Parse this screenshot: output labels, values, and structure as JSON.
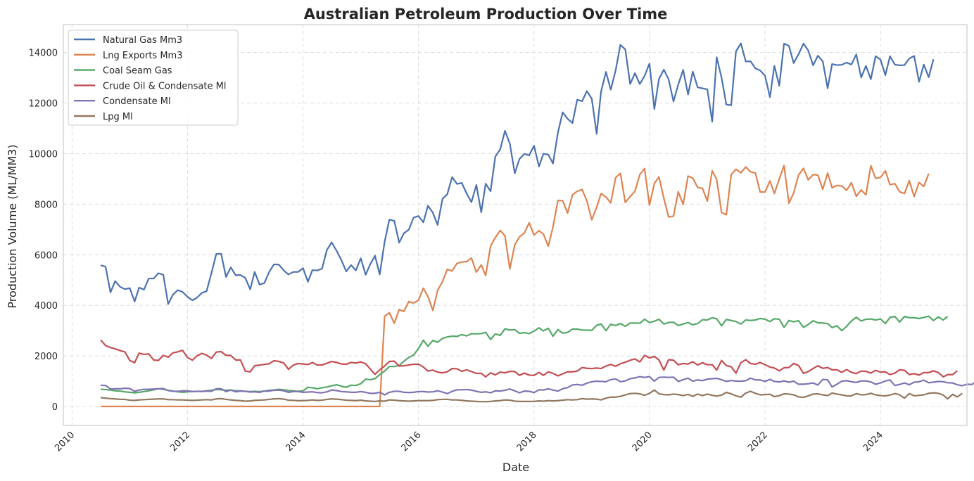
{
  "chart_data": {
    "type": "line",
    "title": "Australian Petroleum Production Over Time",
    "xlabel": "Date",
    "ylabel": "Production Volume (ML/MM3)",
    "xlim": [
      "2009-11-07",
      "2025-07-01"
    ],
    "ylim": [
      -750,
      15100
    ],
    "x_ticks": [
      "2010",
      "2012",
      "2014",
      "2016",
      "2018",
      "2020",
      "2022",
      "2024"
    ],
    "y_ticks": [
      0,
      2000,
      4000,
      6000,
      8000,
      10000,
      12000,
      14000
    ],
    "grid": true,
    "legend_position": "top-left",
    "x_start": "2010-07",
    "x_end": "2024-12",
    "x_frequency": "monthly",
    "series": [
      {
        "name": "Natural Gas Mm3",
        "color": "#4c72b0",
        "values": [
          5580,
          5530,
          4510,
          4960,
          4730,
          4640,
          4680,
          4150,
          4700,
          4620,
          5060,
          5060,
          5270,
          5210,
          4050,
          4420,
          4600,
          4530,
          4340,
          4200,
          4300,
          4490,
          4560,
          5280,
          6030,
          6040,
          5120,
          5500,
          5190,
          5200,
          5080,
          4630,
          5320,
          4820,
          4880,
          5320,
          5620,
          5610,
          5380,
          5220,
          5320,
          5320,
          5470,
          4930,
          5390,
          5380,
          5450,
          6190,
          6490,
          6160,
          5780,
          5340,
          5590,
          5380,
          5860,
          5210,
          5610,
          5960,
          5220,
          6510,
          7390,
          7340,
          6480,
          6850,
          6990,
          7470,
          7530,
          7280,
          7940,
          7660,
          7180,
          8210,
          8390,
          9070,
          8800,
          8840,
          8420,
          8080,
          8760,
          7680,
          8810,
          8510,
          9880,
          10170,
          10900,
          10390,
          9220,
          9790,
          9990,
          9930,
          10310,
          9490,
          9990,
          9960,
          9610,
          10830,
          11630,
          11380,
          11210,
          12130,
          12070,
          12470,
          12170,
          10780,
          12460,
          13230,
          12530,
          13290,
          14300,
          14120,
          12750,
          13180,
          12750,
          13070,
          13560,
          11760,
          12950,
          13320,
          12940,
          12060,
          12730,
          13310,
          12340,
          13240,
          12620,
          12580,
          12540,
          11260,
          13810,
          13000,
          11940,
          11910,
          14040,
          14360,
          13640,
          13650,
          13370,
          13290,
          13080,
          12230,
          13470,
          12680,
          14350,
          14260,
          13580,
          13930,
          14350,
          14080,
          13490,
          13870,
          13650,
          12580,
          13540,
          13500,
          13510,
          13600,
          13520,
          13920,
          13010,
          13470,
          12940,
          13850,
          13720,
          13100,
          13850,
          13520,
          13490,
          13500,
          13760,
          13860,
          12840,
          13520,
          13020,
          13730
        ]
      },
      {
        "name": "Lng Exports Mm3",
        "color": "#dd8452",
        "values": [
          0,
          0,
          0,
          0,
          0,
          0,
          0,
          0,
          0,
          0,
          0,
          0,
          0,
          0,
          0,
          0,
          0,
          0,
          0,
          0,
          0,
          0,
          0,
          0,
          0,
          0,
          0,
          0,
          0,
          0,
          0,
          0,
          0,
          0,
          0,
          0,
          0,
          0,
          0,
          0,
          0,
          0,
          0,
          0,
          0,
          0,
          0,
          0,
          0,
          0,
          0,
          0,
          0,
          0,
          0,
          0,
          0,
          0,
          0,
          3570,
          3710,
          3290,
          3830,
          3760,
          4150,
          4090,
          4200,
          4680,
          4350,
          3800,
          4590,
          4940,
          5420,
          5360,
          5660,
          5710,
          5730,
          5870,
          5310,
          5600,
          5180,
          6340,
          6680,
          6960,
          6750,
          5440,
          6390,
          6710,
          6860,
          7260,
          6780,
          6950,
          6820,
          6340,
          7100,
          8150,
          8140,
          7650,
          8370,
          8510,
          8580,
          8130,
          7380,
          7880,
          8420,
          8280,
          8050,
          9050,
          9220,
          8070,
          8300,
          8510,
          9170,
          9410,
          7960,
          8820,
          9080,
          8230,
          7490,
          7530,
          8490,
          7990,
          9110,
          9030,
          8660,
          8630,
          8120,
          9320,
          8980,
          7670,
          7580,
          9170,
          9380,
          9240,
          9470,
          9280,
          9230,
          8480,
          8480,
          8920,
          8420,
          9000,
          9530,
          8040,
          8440,
          9150,
          9420,
          8960,
          9170,
          9150,
          8590,
          9230,
          8650,
          8740,
          8720,
          8550,
          8850,
          8310,
          8560,
          8370,
          9520,
          9020,
          9060,
          9320,
          8770,
          8810,
          8490,
          8420,
          8930,
          8300,
          8860,
          8700,
          9210
        ]
      },
      {
        "name": "Coal Seam Gas",
        "color": "#55a868",
        "values": [
          680,
          670,
          650,
          620,
          610,
          580,
          560,
          540,
          560,
          590,
          620,
          660,
          700,
          680,
          640,
          610,
          580,
          560,
          580,
          590,
          600,
          600,
          620,
          640,
          670,
          660,
          640,
          650,
          620,
          620,
          600,
          590,
          600,
          590,
          610,
          640,
          650,
          680,
          660,
          630,
          620,
          600,
          620,
          760,
          740,
          700,
          740,
          770,
          820,
          860,
          800,
          760,
          840,
          830,
          900,
          1080,
          1060,
          1100,
          1260,
          1400,
          1580,
          1580,
          1620,
          1790,
          1940,
          2030,
          2290,
          2620,
          2380,
          2610,
          2540,
          2690,
          2750,
          2780,
          2770,
          2840,
          2790,
          2880,
          2870,
          2880,
          2930,
          2650,
          2870,
          2810,
          3070,
          3020,
          3040,
          2890,
          2920,
          2880,
          2980,
          3110,
          2990,
          3090,
          2780,
          3040,
          2900,
          2930,
          3060,
          3060,
          3020,
          3020,
          3010,
          3210,
          3260,
          3000,
          3250,
          3200,
          3280,
          3170,
          3300,
          3300,
          3290,
          3450,
          3320,
          3370,
          3450,
          3260,
          3320,
          3330,
          3200,
          3260,
          3320,
          3230,
          3280,
          3430,
          3420,
          3510,
          3470,
          3190,
          3440,
          3400,
          3360,
          3260,
          3420,
          3400,
          3420,
          3480,
          3450,
          3360,
          3470,
          3450,
          3130,
          3400,
          3350,
          3390,
          3130,
          3240,
          3390,
          3310,
          3300,
          3280,
          3120,
          3190,
          3000,
          3170,
          3380,
          3530,
          3380,
          3450,
          3460,
          3420,
          3460,
          3280,
          3520,
          3560,
          3340,
          3560,
          3510,
          3510,
          3480,
          3520,
          3570,
          3400,
          3540,
          3420,
          3560
        ]
      },
      {
        "name": "Crude Oil & Condensate Ml",
        "color": "#c44e52",
        "values": [
          2630,
          2410,
          2330,
          2280,
          2210,
          2160,
          1820,
          1730,
          2110,
          2060,
          2080,
          1840,
          1820,
          2020,
          1950,
          2120,
          2160,
          2220,
          1940,
          1830,
          2000,
          2100,
          2030,
          1900,
          2150,
          2170,
          2020,
          2020,
          1840,
          1840,
          1400,
          1370,
          1610,
          1640,
          1660,
          1690,
          1810,
          1780,
          1720,
          1470,
          1640,
          1700,
          1680,
          1660,
          1740,
          1640,
          1640,
          1710,
          1780,
          1740,
          1680,
          1670,
          1740,
          1720,
          1760,
          1690,
          1490,
          1270,
          1450,
          1600,
          1780,
          1790,
          1600,
          1610,
          1640,
          1670,
          1670,
          1560,
          1400,
          1440,
          1360,
          1330,
          1370,
          1500,
          1490,
          1390,
          1450,
          1380,
          1310,
          1310,
          1170,
          1330,
          1250,
          1360,
          1330,
          1390,
          1380,
          1230,
          1320,
          1240,
          1230,
          1350,
          1230,
          1370,
          1310,
          1210,
          1290,
          1370,
          1370,
          1400,
          1540,
          1510,
          1500,
          1520,
          1500,
          1600,
          1660,
          1590,
          1690,
          1750,
          1830,
          1880,
          1760,
          2020,
          1920,
          1980,
          1840,
          1440,
          1850,
          1830,
          1650,
          1700,
          1680,
          1770,
          1640,
          1730,
          1650,
          1650,
          1440,
          1820,
          1620,
          1570,
          1320,
          1730,
          1850,
          1700,
          1670,
          1740,
          1650,
          1560,
          1520,
          1410,
          1530,
          1540,
          1700,
          1620,
          1310,
          1380,
          1500,
          1610,
          1510,
          1540,
          1450,
          1450,
          1350,
          1460,
          1350,
          1300,
          1400,
          1390,
          1320,
          1430,
          1360,
          1370,
          1260,
          1320,
          1450,
          1430,
          1260,
          1300,
          1240,
          1340,
          1340,
          1410,
          1340,
          1170,
          1260,
          1260,
          1410
        ]
      },
      {
        "name": "Condensate Ml",
        "color": "#8172b3",
        "values": [
          840,
          830,
          690,
          700,
          700,
          720,
          710,
          600,
          650,
          680,
          680,
          690,
          700,
          710,
          630,
          600,
          600,
          620,
          620,
          590,
          600,
          590,
          610,
          600,
          700,
          700,
          590,
          650,
          580,
          610,
          600,
          570,
          580,
          560,
          610,
          610,
          640,
          650,
          620,
          560,
          590,
          590,
          560,
          570,
          580,
          550,
          540,
          580,
          650,
          630,
          590,
          580,
          560,
          560,
          590,
          560,
          520,
          520,
          560,
          460,
          560,
          600,
          600,
          560,
          550,
          560,
          590,
          590,
          570,
          580,
          620,
          570,
          510,
          600,
          660,
          660,
          670,
          650,
          600,
          560,
          580,
          540,
          620,
          610,
          640,
          690,
          620,
          540,
          610,
          600,
          550,
          660,
          650,
          700,
          650,
          610,
          700,
          750,
          850,
          870,
          840,
          920,
          980,
          1000,
          990,
          980,
          1060,
          1090,
          980,
          1010,
          1100,
          1130,
          1180,
          1150,
          1180,
          1000,
          1150,
          1160,
          1150,
          1160,
          990,
          1060,
          1120,
          1000,
          1050,
          1020,
          1080,
          1100,
          1110,
          1060,
          990,
          1030,
          1000,
          1000,
          1020,
          1120,
          1050,
          1050,
          990,
          1070,
          990,
          970,
          1010,
          960,
          1000,
          880,
          880,
          900,
          930,
          850,
          1070,
          1050,
          770,
          880,
          1000,
          1020,
          980,
          950,
          1010,
          1010,
          970,
          880,
          930,
          1010,
          1050,
          830,
          870,
          930,
          860,
          960,
          980,
          1040,
          940,
          960,
          990,
          980,
          940,
          930,
          860,
          820,
          880,
          870,
          1000
        ]
      },
      {
        "name": "Lpg Ml",
        "color": "#937860",
        "values": [
          350,
          330,
          310,
          300,
          280,
          280,
          250,
          240,
          260,
          270,
          280,
          290,
          300,
          300,
          270,
          270,
          260,
          260,
          250,
          240,
          250,
          260,
          270,
          260,
          300,
          310,
          280,
          260,
          240,
          230,
          210,
          220,
          240,
          250,
          260,
          280,
          300,
          310,
          290,
          250,
          240,
          230,
          230,
          240,
          260,
          240,
          250,
          280,
          300,
          290,
          270,
          250,
          240,
          230,
          250,
          220,
          210,
          200,
          220,
          210,
          260,
          250,
          230,
          220,
          210,
          220,
          230,
          230,
          230,
          240,
          270,
          280,
          280,
          260,
          260,
          240,
          220,
          210,
          200,
          190,
          190,
          200,
          220,
          230,
          260,
          250,
          210,
          200,
          200,
          200,
          200,
          220,
          210,
          230,
          220,
          230,
          250,
          270,
          260,
          270,
          310,
          290,
          300,
          290,
          260,
          330,
          370,
          370,
          400,
          460,
          510,
          520,
          500,
          440,
          520,
          650,
          500,
          470,
          460,
          490,
          470,
          430,
          480,
          400,
          490,
          430,
          490,
          440,
          410,
          450,
          560,
          500,
          420,
          370,
          530,
          600,
          520,
          460,
          470,
          480,
          390,
          430,
          500,
          490,
          460,
          380,
          360,
          420,
          490,
          500,
          460,
          430,
          530,
          490,
          460,
          420,
          420,
          510,
          460,
          470,
          520,
          460,
          430,
          420,
          450,
          510,
          460,
          330,
          510,
          420,
          440,
          460,
          520,
          540,
          520,
          450,
          300,
          480,
          380,
          520
        ]
      }
    ]
  }
}
